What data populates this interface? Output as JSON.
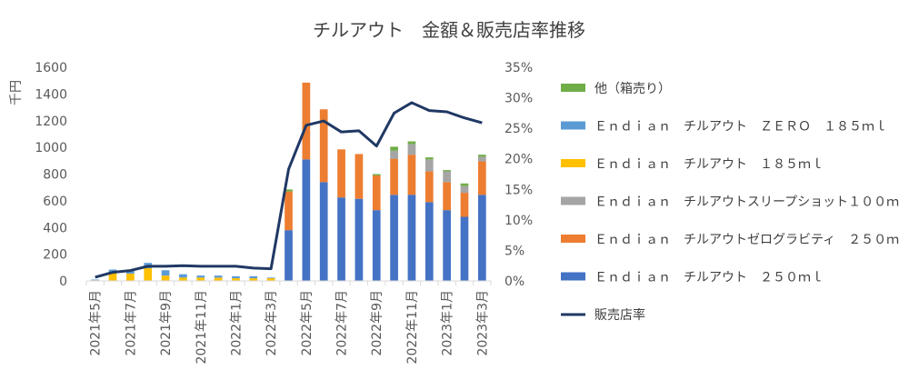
{
  "chart_data": {
    "type": "bar",
    "stacked": true,
    "title": "チルアウト　金額＆販売店率推移",
    "ylabel": "千円",
    "y2label": "",
    "ylim": [
      0,
      1600
    ],
    "y_ticks": [
      0,
      200,
      400,
      600,
      800,
      1000,
      1200,
      1400,
      1600
    ],
    "y2lim": [
      0,
      35
    ],
    "y2_ticks": [
      "0%",
      "5%",
      "10%",
      "15%",
      "20%",
      "25%",
      "30%",
      "35%"
    ],
    "grid": false,
    "legend_position": "right",
    "categories": [
      "2021年5月",
      "2021年6月",
      "2021年7月",
      "2021年8月",
      "2021年9月",
      "2021年10月",
      "2021年11月",
      "2021年12月",
      "2022年1月",
      "2022年2月",
      "2022年3月",
      "2022年4月",
      "2022年5月",
      "2022年6月",
      "2022年7月",
      "2022年8月",
      "2022年9月",
      "2022年10月",
      "2022年11月",
      "2022年12月",
      "2023年1月",
      "2023年2月",
      "2023年3月"
    ],
    "x_tick_labels": [
      "2021年5月",
      "",
      "2021年7月",
      "",
      "2021年9月",
      "",
      "2021年11月",
      "",
      "2022年1月",
      "",
      "2022年3月",
      "",
      "2022年5月",
      "",
      "2022年7月",
      "",
      "2022年9月",
      "",
      "2022年11月",
      "",
      "2023年1月",
      "",
      "2023年3月"
    ],
    "series": [
      {
        "name": "Ｅｎｄｉａｎ　チルアウト　２５０ｍｌ",
        "color": "#4472C4",
        "values": [
          0,
          0,
          0,
          0,
          0,
          0,
          0,
          0,
          0,
          0,
          0,
          380,
          910,
          740,
          625,
          615,
          530,
          645,
          645,
          590,
          530,
          480,
          645
        ]
      },
      {
        "name": "Ｅｎｄｉａｎ　チルアウトゼログラビティ　２５０ｍｌ",
        "color": "#ED7D31",
        "values": [
          0,
          0,
          0,
          0,
          0,
          0,
          0,
          0,
          0,
          0,
          0,
          290,
          575,
          545,
          360,
          335,
          260,
          270,
          300,
          230,
          210,
          180,
          250
        ]
      },
      {
        "name": "Ｅｎｄｉａｎ　チルアウトスリープショット１００ｍｌ",
        "color": "#A5A5A5",
        "values": [
          0,
          0,
          0,
          0,
          0,
          0,
          0,
          0,
          0,
          0,
          0,
          0,
          0,
          0,
          0,
          0,
          0,
          60,
          80,
          90,
          80,
          50,
          35
        ]
      },
      {
        "name": "Ｅｎｄｉａｎ　チルアウト　１８５ｍｌ",
        "color": "#FFC000",
        "values": [
          5,
          60,
          55,
          95,
          40,
          25,
          25,
          25,
          20,
          20,
          20,
          0,
          0,
          0,
          0,
          0,
          0,
          0,
          0,
          0,
          0,
          0,
          0
        ]
      },
      {
        "name": "Ｅｎｄｉａｎ　チルアウト　ＺＥＲＯ　１８５ｍｌ",
        "color": "#5B9BD5",
        "values": [
          5,
          25,
          25,
          40,
          40,
          25,
          15,
          15,
          15,
          15,
          5,
          0,
          0,
          0,
          0,
          0,
          0,
          0,
          0,
          0,
          0,
          0,
          0
        ]
      },
      {
        "name": "他（箱売り）",
        "color": "#70AD47",
        "values": [
          0,
          0,
          0,
          0,
          0,
          0,
          0,
          0,
          0,
          0,
          0,
          15,
          0,
          0,
          0,
          0,
          10,
          30,
          20,
          15,
          10,
          20,
          15
        ]
      }
    ],
    "line_series": {
      "name": "販売店率",
      "color": "#203864",
      "axis": "secondary",
      "values": [
        0.6,
        1.4,
        1.7,
        2.4,
        2.4,
        2.5,
        2.4,
        2.4,
        2.4,
        2.1,
        2.0,
        18.3,
        25.5,
        26.2,
        24.4,
        24.6,
        22.1,
        27.5,
        29.2,
        27.9,
        27.7,
        26.7,
        25.9
      ]
    }
  }
}
